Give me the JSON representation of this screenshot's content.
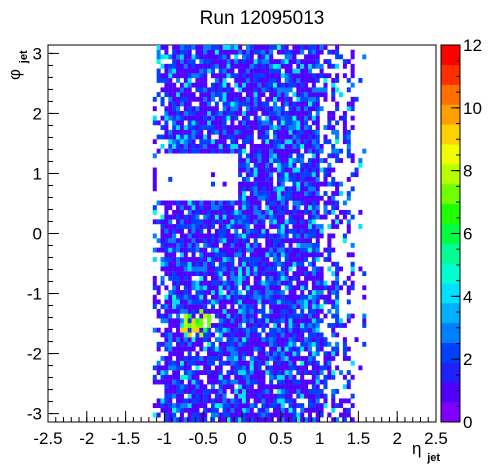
{
  "chart_data": {
    "type": "heatmap",
    "title": "Run 12095013",
    "xlabel": {
      "main": "η",
      "sub": "jet"
    },
    "ylabel": {
      "main": "φ",
      "sub": "jet"
    },
    "xlim": [
      -2.5,
      2.5
    ],
    "ylim": [
      -3.14,
      3.14
    ],
    "x_ticks": [
      "-2.5",
      "-2",
      "-1.5",
      "-1",
      "-0.5",
      "0",
      "0.5",
      "1",
      "1.5",
      "2",
      "2.5"
    ],
    "y_ticks": [
      "-3",
      "-2",
      "-1",
      "0",
      "1",
      "2",
      "3"
    ],
    "z_range": [
      0,
      12
    ],
    "z_ticks": [
      "0",
      "2",
      "4",
      "6",
      "8",
      "10",
      "12"
    ],
    "bins": {
      "nx": 100,
      "ny": 80
    },
    "occupied_eta_range": [
      -1.1,
      1.6
    ],
    "hole_region": {
      "eta": [
        -1.1,
        -0.05
      ],
      "phi": [
        0.55,
        1.3
      ]
    },
    "hot_spot": {
      "eta": -0.6,
      "phi": -1.5,
      "value": 9
    },
    "palette": [
      "#8000ff",
      "#5000ff",
      "#2020ff",
      "#0040ff",
      "#0080ff",
      "#00b0ff",
      "#00e0ff",
      "#00ffd0",
      "#00ff90",
      "#00ff40",
      "#20ff00",
      "#70ff00",
      "#b8ff00",
      "#f0ff00",
      "#ffd000",
      "#ffa000",
      "#ff7000",
      "#ff3000",
      "#ff0000"
    ]
  }
}
